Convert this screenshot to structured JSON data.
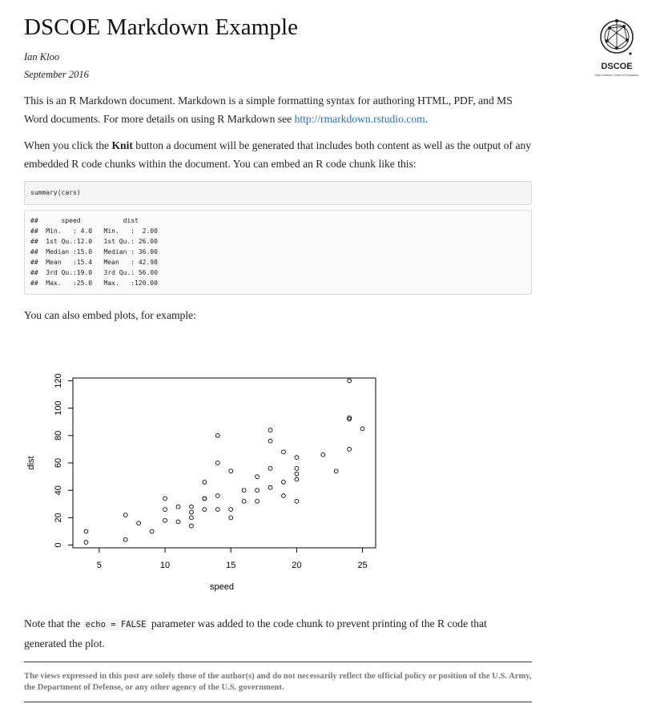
{
  "header": {
    "title": "DSCOE Markdown Example",
    "author": "Ian Kloo",
    "date": "September 2016"
  },
  "logo": {
    "text": "DSCOE",
    "subtitle": "Data Science Center of Education",
    "icon": "network-globe-icon"
  },
  "intro": {
    "text_before_link": "This is an R Markdown document. Markdown is a simple formatting syntax for authoring HTML, PDF, and MS Word documents. For more details on using R Markdown see ",
    "link_text": "http://rmarkdown.rstudio.com",
    "text_after_link": "."
  },
  "knit_para": {
    "before": "When you click the ",
    "bold": "Knit",
    "after": " button a document will be generated that includes both content as well as the output of any embedded R code chunks within the document. You can embed an R code chunk like this:"
  },
  "code_chunk": "summary(cars)",
  "summary_output": [
    "##      speed           dist       ",
    "##  Min.   : 4.0   Min.   :  2.00  ",
    "##  1st Qu.:12.0   1st Qu.: 26.00  ",
    "##  Median :15.0   Median : 36.00  ",
    "##  Mean   :15.4   Mean   : 42.98  ",
    "##  3rd Qu.:19.0   3rd Qu.: 56.00  ",
    "##  Max.   :25.0   Max.   :120.00  "
  ],
  "plots_para": "You can also embed plots, for example:",
  "note_para": {
    "before": "Note that the ",
    "code": "echo = FALSE",
    "after": " parameter was added to the code chunk to prevent printing of the R code that generated the plot."
  },
  "disclaimer": "The views expressed in this post are solely those of the author(s) and do not necessarily reflect the official policy or position of the U.S. Army, the Department of Defense, or any other agency of the U.S. government.",
  "colors": {
    "link": "#2a6ebb",
    "text": "#222222",
    "disclaimer": "#777777"
  },
  "chart_data": {
    "type": "scatter",
    "title": "",
    "xlabel": "speed",
    "ylabel": "dist",
    "xlim": [
      3,
      26
    ],
    "ylim": [
      -2,
      122
    ],
    "xticks": [
      5,
      10,
      15,
      20,
      25
    ],
    "yticks": [
      0,
      20,
      40,
      60,
      80,
      100,
      120
    ],
    "grid": false,
    "series": [
      {
        "x": [
          4,
          4,
          7,
          7,
          8,
          9,
          10,
          10,
          10,
          11,
          11,
          12,
          12,
          12,
          12,
          13,
          13,
          13,
          13,
          14,
          14,
          14,
          14,
          15,
          15,
          15,
          16,
          16,
          17,
          17,
          17,
          18,
          18,
          18,
          18,
          19,
          19,
          19,
          20,
          20,
          20,
          20,
          20,
          22,
          23,
          24,
          24,
          24,
          24,
          25
        ],
        "y": [
          2,
          10,
          4,
          22,
          16,
          10,
          18,
          26,
          34,
          17,
          28,
          14,
          20,
          24,
          28,
          26,
          34,
          34,
          46,
          26,
          36,
          60,
          80,
          20,
          26,
          54,
          32,
          40,
          32,
          40,
          50,
          42,
          56,
          76,
          84,
          36,
          46,
          68,
          32,
          48,
          52,
          56,
          64,
          66,
          54,
          70,
          92,
          93,
          120,
          85
        ]
      }
    ]
  }
}
